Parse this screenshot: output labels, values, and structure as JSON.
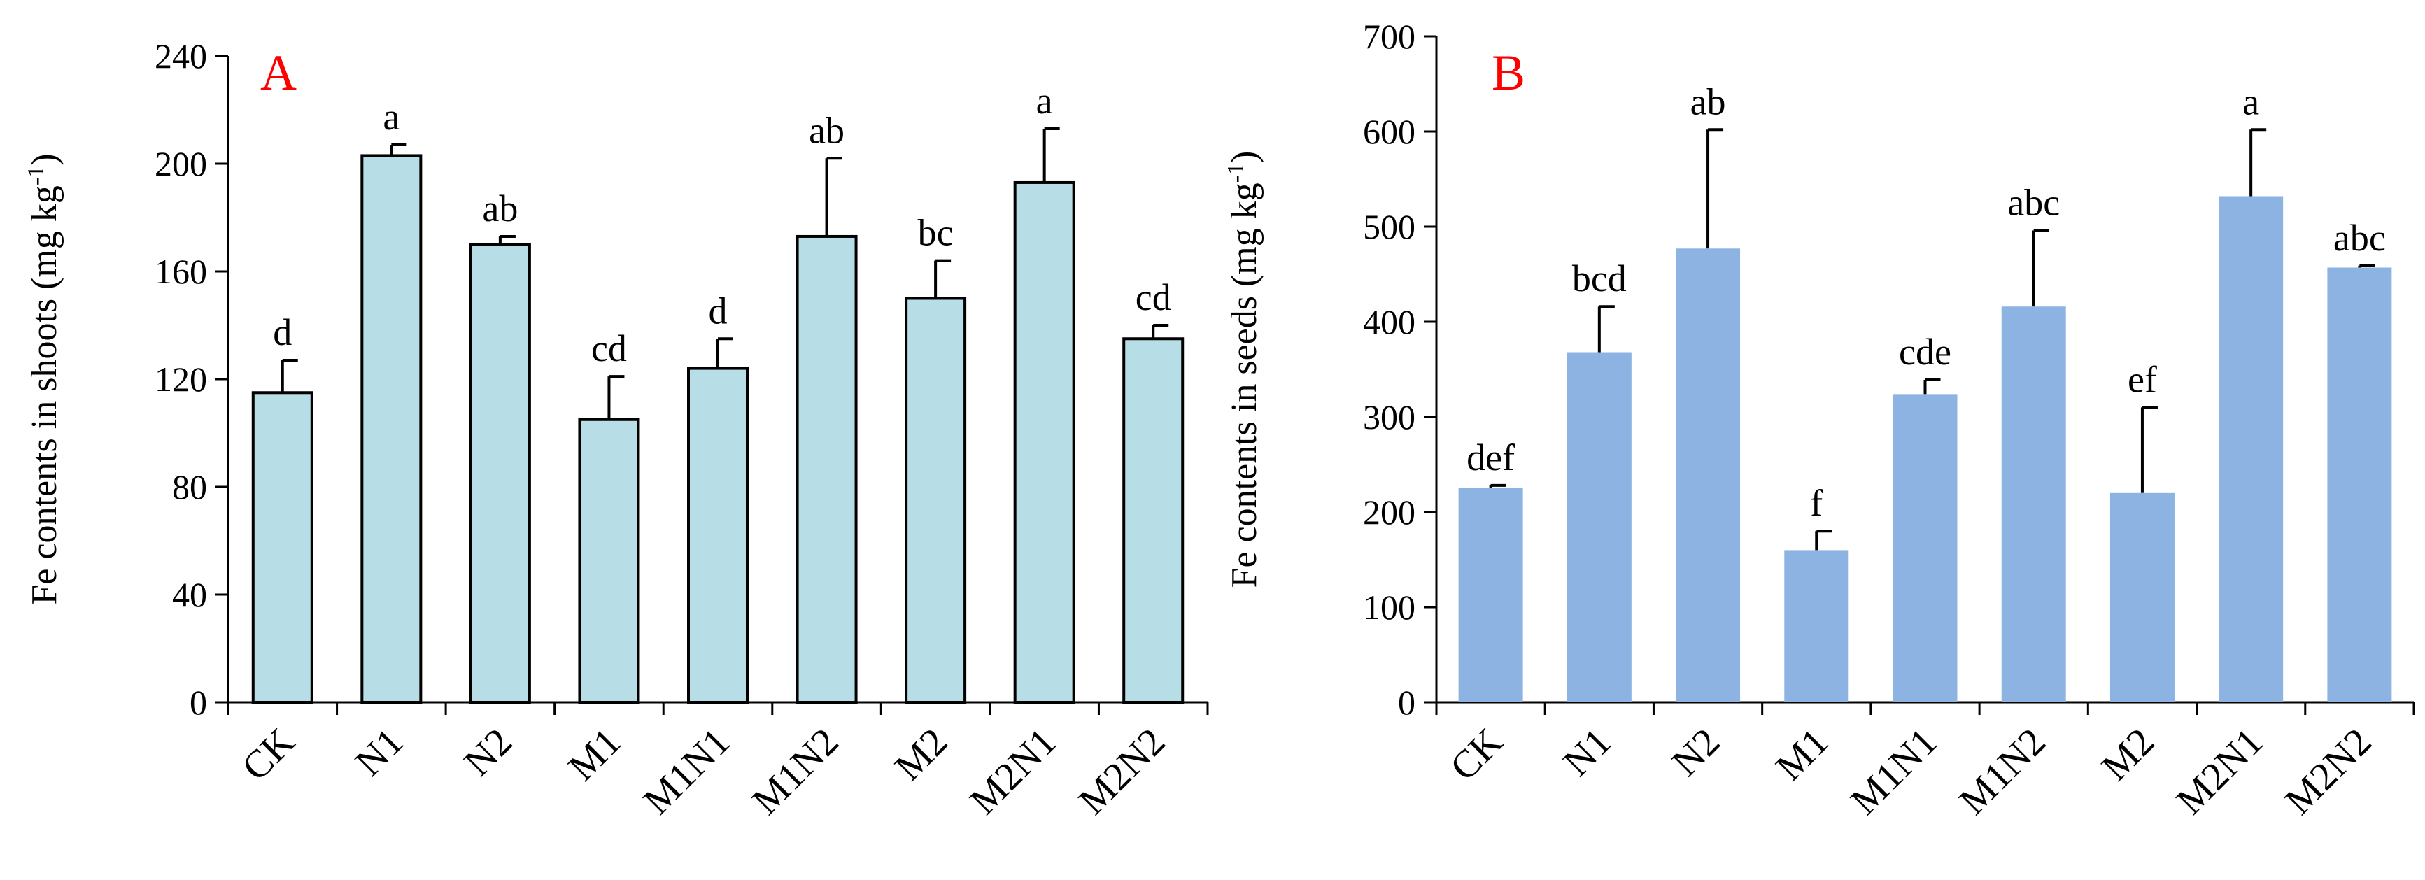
{
  "chart_data": [
    {
      "type": "bar",
      "panel_label": "A",
      "categories": [
        "CK",
        "N1",
        "N2",
        "M1",
        "M1N1",
        "M1N2",
        "M2",
        "M2N1",
        "M2N2"
      ],
      "values": [
        115,
        203,
        170,
        105,
        124,
        173,
        150,
        193,
        135
      ],
      "errors": [
        12,
        4,
        3,
        16,
        11,
        29,
        14,
        20,
        5
      ],
      "significance": [
        "d",
        "a",
        "ab",
        "cd",
        "d",
        "ab",
        "bc",
        "a",
        "cd"
      ],
      "ylabel_main": "Fe contents in shoots (mg kg",
      "ylabel_sup": "-1",
      "ylabel_end": ")",
      "ylim": [
        0,
        240
      ],
      "yticks": [
        0,
        40,
        80,
        120,
        160,
        200,
        240
      ],
      "ytick_labels": [
        "0",
        "40",
        "80",
        "120",
        "160",
        "200",
        "240"
      ],
      "bar_color": "#b7dde6",
      "bar_stroke": "#000000",
      "label_color": "#ff0000"
    },
    {
      "type": "bar",
      "panel_label": "B",
      "categories": [
        "CK",
        "N1",
        "N2",
        "M1",
        "M1N1",
        "M1N2",
        "M2",
        "M2N1",
        "M2N2"
      ],
      "values": [
        225,
        368,
        477,
        160,
        324,
        416,
        220,
        532,
        457
      ],
      "errors": [
        3,
        48,
        125,
        20,
        15,
        80,
        90,
        70,
        2
      ],
      "significance": [
        "def",
        "bcd",
        "ab",
        "f",
        "cde",
        "abc",
        "ef",
        "a",
        "abc"
      ],
      "ylabel_main": "Fe contents in seeds (mg kg",
      "ylabel_sup": "-1",
      "ylabel_end": ")",
      "ylim": [
        0,
        700
      ],
      "yticks": [
        0,
        100,
        200,
        300,
        400,
        500,
        600,
        700
      ],
      "ytick_labels": [
        "0",
        "100",
        "200",
        "300",
        "400",
        "500",
        "600",
        "700"
      ],
      "bar_color": "#8db3e2",
      "bar_stroke": "none",
      "label_color": "#ff0000"
    }
  ]
}
